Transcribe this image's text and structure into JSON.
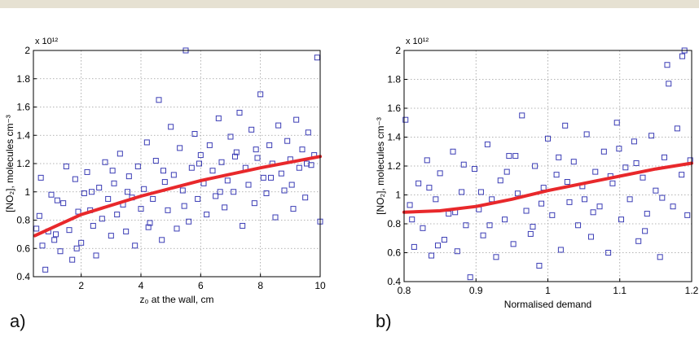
{
  "top_rule_color": "#e6e1d2",
  "colors": {
    "marker": "#3b3db5",
    "fit": "#e8282b",
    "grid": "#9a9a9a",
    "axis": "#000000"
  },
  "panels": [
    {
      "label": "a)"
    },
    {
      "label": "b)"
    }
  ],
  "chart_data": [
    {
      "type": "scatter",
      "xlabel": "z₀ at the wall, cm",
      "ylabel": "[NO₂], molecules cm⁻³",
      "y_multiplier": "x 10¹²",
      "xlim": [
        0.4,
        10
      ],
      "ylim": [
        0.4,
        2.0
      ],
      "xticks": [
        2,
        4,
        6,
        8,
        10
      ],
      "yticks": [
        0.4,
        0.6,
        0.8,
        1,
        1.2,
        1.4,
        1.6,
        1.8,
        2
      ],
      "grid": true,
      "marker": "open-square",
      "points": [
        [
          0.5,
          0.74
        ],
        [
          0.6,
          0.83
        ],
        [
          0.7,
          0.62
        ],
        [
          0.8,
          0.45
        ],
        [
          0.9,
          0.72
        ],
        [
          1.0,
          0.98
        ],
        [
          1.1,
          0.66
        ],
        [
          1.2,
          0.94
        ],
        [
          1.3,
          0.58
        ],
        [
          1.4,
          0.92
        ],
        [
          1.5,
          1.18
        ],
        [
          1.6,
          0.73
        ],
        [
          1.7,
          0.52
        ],
        [
          1.8,
          1.09
        ],
        [
          1.9,
          0.86
        ],
        [
          2.0,
          0.64
        ],
        [
          2.1,
          0.99
        ],
        [
          2.2,
          1.14
        ],
        [
          2.3,
          0.87
        ],
        [
          2.4,
          0.76
        ],
        [
          2.5,
          0.55
        ],
        [
          2.6,
          1.03
        ],
        [
          2.7,
          0.81
        ],
        [
          2.8,
          1.21
        ],
        [
          2.9,
          0.95
        ],
        [
          3.0,
          0.69
        ],
        [
          3.1,
          1.06
        ],
        [
          3.2,
          0.84
        ],
        [
          3.3,
          1.27
        ],
        [
          3.4,
          0.91
        ],
        [
          3.5,
          0.72
        ],
        [
          3.6,
          1.11
        ],
        [
          3.7,
          0.96
        ],
        [
          3.8,
          0.62
        ],
        [
          3.9,
          1.18
        ],
        [
          4.0,
          0.88
        ],
        [
          4.1,
          1.02
        ],
        [
          4.2,
          1.35
        ],
        [
          4.3,
          0.78
        ],
        [
          4.4,
          0.95
        ],
        [
          4.5,
          1.22
        ],
        [
          4.6,
          1.65
        ],
        [
          4.7,
          0.66
        ],
        [
          4.8,
          1.07
        ],
        [
          4.9,
          0.87
        ],
        [
          5.0,
          1.46
        ],
        [
          5.1,
          1.12
        ],
        [
          5.2,
          0.74
        ],
        [
          5.3,
          1.31
        ],
        [
          5.4,
          1.01
        ],
        [
          5.5,
          2.0
        ],
        [
          5.6,
          0.79
        ],
        [
          5.7,
          1.17
        ],
        [
          5.8,
          1.41
        ],
        [
          5.9,
          0.95
        ],
        [
          6.0,
          1.26
        ],
        [
          6.1,
          1.06
        ],
        [
          6.2,
          0.84
        ],
        [
          6.3,
          1.33
        ],
        [
          6.4,
          1.15
        ],
        [
          6.5,
          0.97
        ],
        [
          6.6,
          1.52
        ],
        [
          6.7,
          1.21
        ],
        [
          6.8,
          0.89
        ],
        [
          6.9,
          1.08
        ],
        [
          7.0,
          1.39
        ],
        [
          7.1,
          1.0
        ],
        [
          7.2,
          1.28
        ],
        [
          7.3,
          1.56
        ],
        [
          7.4,
          0.76
        ],
        [
          7.5,
          1.17
        ],
        [
          7.6,
          1.05
        ],
        [
          7.7,
          1.44
        ],
        [
          7.8,
          0.92
        ],
        [
          7.9,
          1.24
        ],
        [
          8.0,
          1.69
        ],
        [
          8.1,
          1.1
        ],
        [
          8.2,
          0.99
        ],
        [
          8.3,
          1.33
        ],
        [
          8.4,
          1.2
        ],
        [
          8.5,
          0.82
        ],
        [
          8.6,
          1.47
        ],
        [
          8.7,
          1.13
        ],
        [
          8.8,
          1.01
        ],
        [
          8.9,
          1.36
        ],
        [
          9.0,
          1.23
        ],
        [
          9.1,
          0.88
        ],
        [
          9.2,
          1.51
        ],
        [
          9.3,
          1.17
        ],
        [
          9.4,
          1.3
        ],
        [
          9.5,
          0.96
        ],
        [
          9.6,
          1.42
        ],
        [
          9.7,
          1.19
        ],
        [
          9.8,
          1.26
        ],
        [
          9.9,
          1.95
        ],
        [
          10.0,
          0.79
        ],
        [
          1.15,
          0.7
        ],
        [
          2.35,
          1.0
        ],
        [
          3.55,
          1.0
        ],
        [
          4.75,
          1.15
        ],
        [
          5.95,
          1.2
        ],
        [
          7.15,
          1.25
        ],
        [
          8.35,
          1.1
        ],
        [
          9.55,
          1.2
        ],
        [
          0.65,
          1.1
        ],
        [
          1.85,
          0.6
        ],
        [
          3.05,
          1.15
        ],
        [
          4.25,
          0.75
        ],
        [
          5.45,
          0.9
        ],
        [
          6.65,
          1.0
        ],
        [
          7.85,
          1.3
        ],
        [
          9.05,
          1.05
        ]
      ],
      "fit": {
        "name": "",
        "x": [
          0.45,
          2,
          4,
          6,
          8,
          10
        ],
        "y": [
          0.69,
          0.84,
          0.97,
          1.08,
          1.17,
          1.25
        ]
      }
    },
    {
      "type": "scatter",
      "xlabel": "Normalised demand",
      "ylabel": "[NO₂], molecules cm⁻³",
      "y_multiplier": "x 10¹²",
      "xlim": [
        0.8,
        1.2
      ],
      "ylim": [
        0.4,
        2.0
      ],
      "xticks": [
        0.8,
        0.9,
        1,
        1.1,
        1.2
      ],
      "yticks": [
        0.4,
        0.6,
        0.8,
        1,
        1.2,
        1.4,
        1.6,
        1.8,
        2
      ],
      "grid": true,
      "marker": "open-square",
      "points": [
        [
          0.802,
          1.52
        ],
        [
          0.808,
          0.93
        ],
        [
          0.814,
          0.64
        ],
        [
          0.82,
          1.08
        ],
        [
          0.826,
          0.77
        ],
        [
          0.832,
          1.24
        ],
        [
          0.838,
          0.58
        ],
        [
          0.844,
          0.97
        ],
        [
          0.85,
          1.15
        ],
        [
          0.856,
          0.69
        ],
        [
          0.862,
          0.87
        ],
        [
          0.868,
          1.3
        ],
        [
          0.874,
          0.61
        ],
        [
          0.88,
          1.02
        ],
        [
          0.886,
          0.79
        ],
        [
          0.892,
          0.43
        ],
        [
          0.898,
          1.18
        ],
        [
          0.904,
          0.9
        ],
        [
          0.91,
          0.72
        ],
        [
          0.916,
          1.35
        ],
        [
          0.922,
          0.97
        ],
        [
          0.928,
          0.57
        ],
        [
          0.934,
          1.1
        ],
        [
          0.94,
          0.83
        ],
        [
          0.946,
          1.27
        ],
        [
          0.952,
          0.66
        ],
        [
          0.958,
          1.01
        ],
        [
          0.964,
          1.55
        ],
        [
          0.97,
          0.89
        ],
        [
          0.976,
          0.73
        ],
        [
          0.982,
          1.2
        ],
        [
          0.988,
          0.51
        ],
        [
          0.994,
          1.05
        ],
        [
          1.0,
          1.39
        ],
        [
          1.006,
          0.86
        ],
        [
          1.012,
          1.14
        ],
        [
          1.018,
          0.62
        ],
        [
          1.024,
          1.48
        ],
        [
          1.03,
          0.95
        ],
        [
          1.036,
          1.23
        ],
        [
          1.042,
          0.79
        ],
        [
          1.048,
          1.06
        ],
        [
          1.054,
          1.42
        ],
        [
          1.06,
          0.71
        ],
        [
          1.066,
          1.16
        ],
        [
          1.072,
          0.92
        ],
        [
          1.078,
          1.3
        ],
        [
          1.084,
          0.6
        ],
        [
          1.09,
          1.08
        ],
        [
          1.096,
          1.5
        ],
        [
          1.102,
          0.83
        ],
        [
          1.108,
          1.19
        ],
        [
          1.114,
          0.97
        ],
        [
          1.12,
          1.37
        ],
        [
          1.126,
          0.68
        ],
        [
          1.132,
          1.12
        ],
        [
          1.138,
          0.87
        ],
        [
          1.144,
          1.41
        ],
        [
          1.15,
          1.03
        ],
        [
          1.156,
          0.57
        ],
        [
          1.162,
          1.26
        ],
        [
          1.168,
          1.77
        ],
        [
          1.174,
          0.92
        ],
        [
          1.18,
          1.46
        ],
        [
          1.186,
          1.14
        ],
        [
          1.19,
          2.0
        ],
        [
          1.194,
          0.86
        ],
        [
          1.198,
          1.24
        ],
        [
          1.166,
          1.9
        ],
        [
          1.187,
          1.96
        ],
        [
          0.811,
          0.83
        ],
        [
          0.847,
          0.65
        ],
        [
          0.883,
          1.21
        ],
        [
          0.919,
          0.79
        ],
        [
          0.955,
          1.27
        ],
        [
          0.991,
          0.94
        ],
        [
          1.027,
          1.09
        ],
        [
          1.063,
          0.88
        ],
        [
          1.099,
          1.32
        ],
        [
          1.135,
          0.75
        ],
        [
          0.835,
          1.05
        ],
        [
          0.871,
          0.88
        ],
        [
          0.907,
          1.02
        ],
        [
          0.943,
          1.16
        ],
        [
          0.979,
          0.78
        ],
        [
          1.015,
          1.26
        ],
        [
          1.051,
          0.97
        ],
        [
          1.087,
          1.13
        ],
        [
          1.123,
          1.22
        ],
        [
          1.159,
          0.98
        ]
      ],
      "fit": {
        "name": "",
        "x": [
          0.8,
          0.85,
          0.9,
          0.95,
          1.0,
          1.05,
          1.1,
          1.15,
          1.2
        ],
        "y": [
          0.88,
          0.89,
          0.92,
          0.97,
          1.03,
          1.08,
          1.13,
          1.18,
          1.22
        ]
      }
    }
  ]
}
